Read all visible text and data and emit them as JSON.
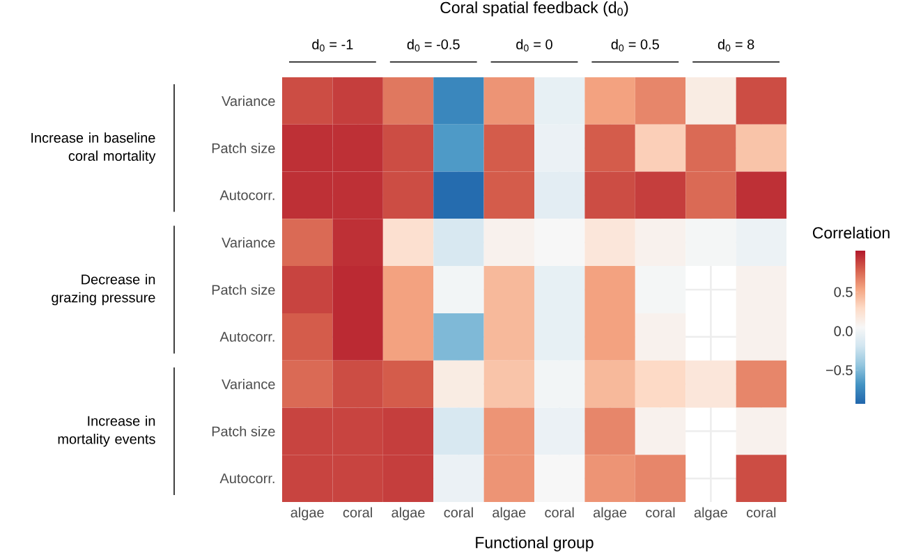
{
  "chart_data": {
    "type": "heatmap",
    "title": "Coral spatial feedback (d$_{0}$)",
    "xlabel": "Functional group",
    "clabel": "Correlation",
    "annotations": [
      "d$_{0}$ = -1",
      "d$_{0}$ = -0.5",
      "d$_{0}$ = 0",
      "d$_{0}$ = 0.5",
      "d$_{0}$ = 8",
      "Increase in baseline coral mortality",
      "Decrease in grazing pressure",
      "Increase in mortality events"
    ],
    "grid": true,
    "clim": [
      -0.93,
      1.03
    ],
    "cticks": [
      {
        "value": -0.5,
        "label": "−0.5"
      },
      {
        "value": 0,
        "label": "0.0"
      },
      {
        "value": 0.5,
        "label": "0.5"
      }
    ],
    "categories": [
      "algae",
      "coral",
      "algae",
      "coral",
      "algae",
      "coral",
      "algae",
      "coral",
      "algae",
      "coral"
    ],
    "y_categories": [
      "Variance",
      "Patch size",
      "Autocorr.",
      "Variance",
      "Patch size",
      "Autocorr.",
      "Variance",
      "Patch size",
      "Autocorr."
    ],
    "cells": [
      [
        0.85,
        0.9,
        0.7,
        -0.75,
        0.6,
        -0.05,
        0.55,
        0.65,
        0.15,
        0.85
      ],
      [
        0.95,
        0.95,
        0.85,
        -0.65,
        0.8,
        -0.03,
        0.8,
        0.35,
        0.75,
        0.4
      ],
      [
        0.95,
        0.95,
        0.85,
        -0.9,
        0.8,
        -0.08,
        0.85,
        0.9,
        0.75,
        0.95
      ],
      [
        0.75,
        0.95,
        0.25,
        -0.15,
        0.1,
        0.05,
        0.2,
        0.1,
        0.03,
        -0.02
      ],
      [
        0.88,
        0.97,
        0.55,
        0.02,
        0.45,
        -0.05,
        0.55,
        0.03,
        null,
        0.1
      ],
      [
        0.8,
        0.97,
        0.55,
        -0.5,
        0.45,
        -0.05,
        0.55,
        0.1,
        null,
        0.1
      ],
      [
        0.75,
        0.85,
        0.8,
        0.15,
        0.4,
        0.02,
        0.45,
        0.3,
        0.2,
        0.65
      ],
      [
        0.88,
        0.88,
        0.9,
        -0.15,
        0.6,
        -0.03,
        0.65,
        0.1,
        null,
        0.1
      ],
      [
        0.88,
        0.88,
        0.9,
        -0.03,
        0.6,
        0.05,
        0.6,
        0.65,
        null,
        0.85
      ]
    ]
  }
}
